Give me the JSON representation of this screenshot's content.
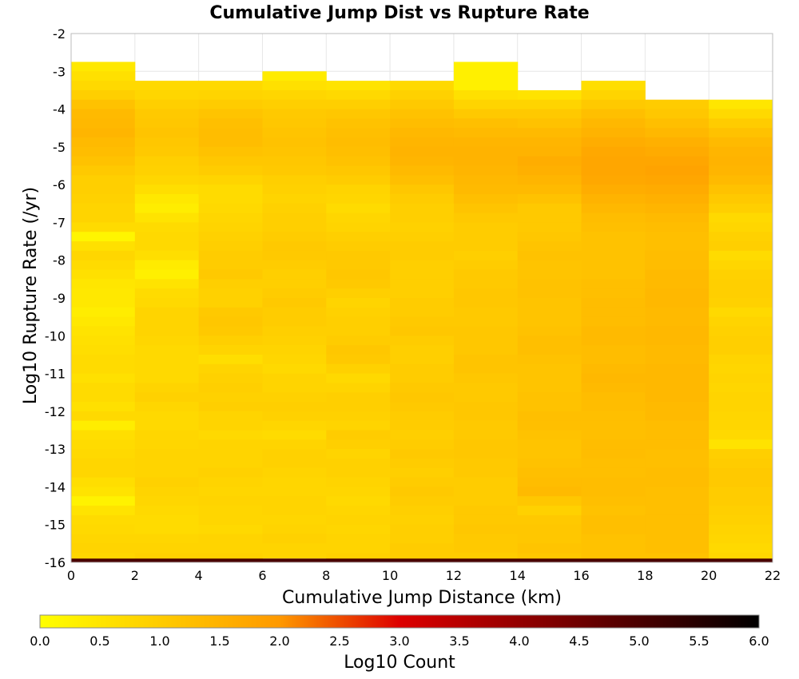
{
  "chart_data": {
    "type": "heatmap",
    "title": "Cumulative Jump Dist vs Rupture Rate",
    "xlabel": "Cumulative Jump Distance (km)",
    "ylabel": "Log10 Rupture Rate (/yr)",
    "xlim": [
      0,
      22
    ],
    "ylim": [
      -16,
      -2
    ],
    "x_ticks": [
      "0",
      "2",
      "4",
      "6",
      "8",
      "10",
      "12",
      "14",
      "16",
      "18",
      "20",
      "22"
    ],
    "y_ticks": [
      "-2",
      "-3",
      "-4",
      "-5",
      "-6",
      "-7",
      "-8",
      "-9",
      "-10",
      "-11",
      "-12",
      "-13",
      "-14",
      "-15",
      "-16"
    ],
    "x_bin_edges": [
      0,
      2,
      4,
      6,
      8,
      10,
      12,
      14,
      16,
      18,
      20,
      22
    ],
    "y_bin_width": 0.25,
    "cell_values": {
      "description_of_layout": "",
      "columns": [
        {
          "x0": 0,
          "x1": 2,
          "y_top": -2.75,
          "values_top_to_bottom": [
            0.45,
            0.6,
            0.75,
            0.95,
            1.2,
            1.35,
            1.4,
            1.45,
            1.35,
            1.3,
            1.2,
            1.05,
            0.95,
            0.95,
            0.9,
            0.85,
            0.85,
            0.7,
            0.2,
            0.6,
            0.8,
            0.7,
            0.6,
            0.5,
            0.45,
            0.45,
            0.35,
            0.45,
            0.55,
            0.6,
            0.65,
            0.7,
            0.7,
            0.6,
            0.7,
            0.7,
            0.6,
            0.75,
            0.35,
            0.65,
            0.7,
            0.75,
            0.8,
            0.8,
            0.65,
            0.55,
            0.25,
            0.55,
            0.7,
            0.75,
            0.8,
            0.85,
            0.8,
            0.75,
            0.8,
            0.8,
            0.35,
            0.6,
            0.65,
            0.75,
            0.75
          ]
        },
        {
          "x0": 2,
          "x1": 4,
          "y_top": -3.25,
          "values_top_to_bottom": [
            0.75,
            0.8,
            0.95,
            1.05,
            1.1,
            1.15,
            1.1,
            1.05,
            0.95,
            0.9,
            0.8,
            0.65,
            0.45,
            0.35,
            0.55,
            0.7,
            0.75,
            0.75,
            0.65,
            0.4,
            0.3,
            0.55,
            0.7,
            0.75,
            0.85,
            0.85,
            0.85,
            0.8,
            0.75,
            0.75,
            0.75,
            0.75,
            0.85,
            0.9,
            0.8,
            0.75,
            0.75,
            0.8,
            0.8,
            0.85,
            0.85,
            0.85,
            0.9,
            0.85,
            0.8,
            0.75,
            0.7,
            0.7,
            0.8,
            0.85,
            0.9,
            0.85,
            0.8
          ]
        },
        {
          "x0": 4,
          "x1": 6,
          "y_top": -3.25,
          "values_top_to_bottom": [
            0.75,
            0.85,
            1.0,
            1.15,
            1.25,
            1.3,
            1.3,
            1.2,
            1.1,
            1.0,
            0.85,
            0.7,
            0.7,
            0.75,
            0.8,
            0.85,
            0.9,
            0.95,
            1.0,
            1.0,
            1.05,
            0.95,
            0.9,
            0.9,
            1.05,
            1.1,
            1.05,
            0.95,
            0.85,
            0.65,
            0.85,
            0.9,
            0.95,
            0.9,
            0.95,
            0.85,
            0.85,
            0.75,
            0.85,
            0.85,
            0.85,
            0.9,
            0.85,
            0.8,
            0.85,
            0.8,
            0.8,
            0.75,
            0.85,
            0.85,
            0.9,
            0.85,
            0.8
          ]
        },
        {
          "x0": 6,
          "x1": 8,
          "y_top": -3.0,
          "values_top_to_bottom": [
            0.4,
            0.6,
            0.8,
            0.95,
            1.05,
            1.1,
            1.15,
            1.2,
            1.15,
            1.1,
            1.05,
            0.95,
            0.9,
            0.85,
            0.9,
            0.95,
            0.95,
            1.0,
            1.05,
            1.05,
            1.0,
            0.95,
            0.95,
            1.0,
            1.05,
            1.0,
            1.0,
            0.95,
            0.9,
            0.85,
            0.8,
            0.75,
            0.85,
            0.85,
            0.9,
            0.95,
            0.9,
            0.8,
            0.7,
            0.85,
            0.9,
            0.9,
            0.85,
            0.8,
            0.8,
            0.85,
            0.85,
            0.8,
            0.85,
            0.9,
            0.85
          ]
        },
        {
          "x0": 8,
          "x1": 10,
          "y_top": -3.25,
          "values_top_to_bottom": [
            0.55,
            0.75,
            0.95,
            1.1,
            1.2,
            1.25,
            1.3,
            1.25,
            1.2,
            1.1,
            1.0,
            0.85,
            0.8,
            0.7,
            0.8,
            0.85,
            0.95,
            1.0,
            1.05,
            1.05,
            1.1,
            1.05,
            0.95,
            0.85,
            0.9,
            0.95,
            0.95,
            1.0,
            1.1,
            1.05,
            0.9,
            0.75,
            0.85,
            0.95,
            0.95,
            0.9,
            0.85,
            1.0,
            0.95,
            0.85,
            0.9,
            0.9,
            0.85,
            0.8,
            0.75,
            0.8,
            0.85,
            0.8,
            0.85,
            0.85,
            0.9,
            0.85,
            0.75
          ]
        },
        {
          "x0": 10,
          "x1": 12,
          "y_top": -3.25,
          "values_top_to_bottom": [
            0.75,
            0.9,
            1.05,
            1.2,
            1.3,
            1.4,
            1.45,
            1.5,
            1.45,
            1.35,
            1.25,
            1.1,
            1.0,
            0.95,
            0.95,
            0.9,
            0.95,
            1.0,
            1.0,
            0.95,
            0.95,
            0.95,
            0.95,
            1.0,
            1.0,
            1.05,
            1.1,
            1.0,
            0.95,
            0.95,
            1.0,
            1.0,
            1.05,
            1.1,
            1.05,
            1.0,
            1.0,
            0.95,
            1.0,
            1.05,
            1.0,
            0.95,
            1.0,
            1.05,
            1.0,
            0.95,
            0.9,
            0.95,
            0.95,
            1.0,
            1.0,
            0.95,
            0.9
          ]
        },
        {
          "x0": 12,
          "x1": 14,
          "y_top": -2.75,
          "values_top_to_bottom": [
            0.3,
            0.3,
            0.3,
            0.6,
            0.85,
            1.05,
            1.25,
            1.35,
            1.45,
            1.5,
            1.5,
            1.45,
            1.4,
            1.35,
            1.25,
            1.15,
            1.05,
            1.0,
            1.0,
            1.0,
            0.95,
            1.0,
            1.05,
            1.05,
            1.1,
            1.1,
            1.05,
            1.05,
            1.1,
            1.1,
            1.1,
            1.15,
            1.15,
            1.1,
            1.05,
            1.05,
            1.1,
            1.1,
            1.05,
            1.05,
            1.1,
            1.1,
            1.05,
            1.05,
            1.0,
            1.0,
            1.0,
            1.05,
            1.05,
            1.1,
            1.05,
            1.05,
            1.0,
            1.0,
            1.05,
            1.05,
            1.0,
            1.05,
            1.0,
            1.0,
            1.0
          ]
        },
        {
          "x0": 14,
          "x1": 16,
          "y_top": -3.5,
          "values_top_to_bottom": [
            0.55,
            0.85,
            1.05,
            1.2,
            1.35,
            1.45,
            1.5,
            1.6,
            1.55,
            1.45,
            1.35,
            1.2,
            1.05,
            1.05,
            1.05,
            1.1,
            1.15,
            1.2,
            1.15,
            1.15,
            1.2,
            1.2,
            1.15,
            1.15,
            1.15,
            1.2,
            1.25,
            1.25,
            1.2,
            1.15,
            1.15,
            1.15,
            1.2,
            1.2,
            1.25,
            1.25,
            1.2,
            1.15,
            1.15,
            1.2,
            1.25,
            1.3,
            1.35,
            1.1,
            0.9,
            1.05,
            1.1,
            1.1,
            1.15,
            1.1
          ]
        },
        {
          "x0": 16,
          "x1": 18,
          "y_top": -3.25,
          "values_top_to_bottom": [
            0.65,
            0.85,
            1.05,
            1.25,
            1.4,
            1.5,
            1.6,
            1.7,
            1.75,
            1.75,
            1.7,
            1.6,
            1.5,
            1.4,
            1.3,
            1.25,
            1.2,
            1.2,
            1.2,
            1.2,
            1.2,
            1.25,
            1.25,
            1.3,
            1.3,
            1.3,
            1.35,
            1.35,
            1.3,
            1.3,
            1.35,
            1.4,
            1.35,
            1.3,
            1.3,
            1.25,
            1.25,
            1.25,
            1.3,
            1.3,
            1.25,
            1.25,
            1.3,
            1.3,
            1.25,
            1.2,
            1.25,
            1.25,
            1.2,
            1.2,
            1.2,
            1.2,
            1.2
          ]
        },
        {
          "x0": 18,
          "x1": 20,
          "y_top": -3.75,
          "values_top_to_bottom": [
            1.0,
            1.1,
            1.25,
            1.4,
            1.55,
            1.65,
            1.75,
            1.8,
            1.75,
            1.65,
            1.55,
            1.45,
            1.35,
            1.3,
            1.25,
            1.25,
            1.3,
            1.3,
            1.35,
            1.35,
            1.4,
            1.4,
            1.35,
            1.35,
            1.4,
            1.4,
            1.35,
            1.35,
            1.4,
            1.4,
            1.4,
            1.4,
            1.35,
            1.35,
            1.3,
            1.3,
            1.3,
            1.25,
            1.25,
            1.3,
            1.3,
            1.25,
            1.25,
            1.25,
            1.25,
            1.25,
            1.25,
            1.25,
            1.2
          ]
        },
        {
          "x0": 20,
          "x1": 22,
          "y_top": -3.75,
          "values_top_to_bottom": [
            0.5,
            0.75,
            1.0,
            1.2,
            1.35,
            1.45,
            1.5,
            1.45,
            1.35,
            1.2,
            1.05,
            0.95,
            0.75,
            0.8,
            0.9,
            0.95,
            0.7,
            0.8,
            0.9,
            0.95,
            0.95,
            0.9,
            0.75,
            0.85,
            0.9,
            0.95,
            0.95,
            0.85,
            0.8,
            0.85,
            0.8,
            0.85,
            0.85,
            0.8,
            0.8,
            0.75,
            0.55,
            0.95,
            1.0,
            1.05,
            1.05,
            1.0,
            1.0,
            0.95,
            0.9,
            0.85,
            0.8,
            0.75,
            0.8
          ]
        }
      ],
      "bottom_row": {
        "y0": -16.0,
        "y1": -15.9,
        "value": 5.0
      }
    },
    "colorbar": {
      "label": "Log10 Count",
      "min": 0.0,
      "max": 6.0,
      "ticks": [
        "0.0",
        "0.5",
        "1.0",
        "1.5",
        "2.0",
        "2.5",
        "3.0",
        "3.5",
        "4.0",
        "4.5",
        "5.0",
        "5.5",
        "6.0"
      ],
      "colormap": [
        "#ffff00",
        "#ff9900",
        "#dd0000",
        "#000000"
      ]
    },
    "grid": true,
    "legend": "bottom"
  }
}
